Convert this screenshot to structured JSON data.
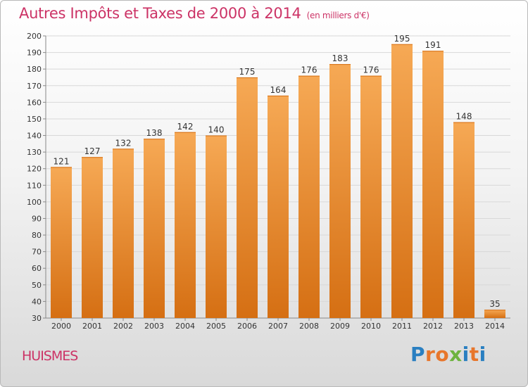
{
  "title": "Autres Impôts et Taxes de 2000 à 2014",
  "unit_note": "(en milliers d'€)",
  "town": "HUISMES",
  "logo": {
    "text": "Proxiti",
    "colors": [
      "#2a7fc1",
      "#e8762b",
      "#e8762b",
      "#6db33f",
      "#2a7fc1",
      "#e8762b",
      "#2a7fc1"
    ]
  },
  "colors": {
    "bar_top": "#f6a955",
    "bar_bottom": "#d56f13",
    "title": "#cc3366",
    "grid": "#d8d8d8"
  },
  "chart_data": {
    "type": "bar",
    "categories": [
      "2000",
      "2001",
      "2002",
      "2003",
      "2004",
      "2005",
      "2006",
      "2007",
      "2008",
      "2009",
      "2010",
      "2011",
      "2012",
      "2013",
      "2014"
    ],
    "values": [
      121,
      127,
      132,
      138,
      142,
      140,
      175,
      164,
      176,
      183,
      176,
      195,
      191,
      148,
      35
    ],
    "ylim": [
      30,
      200
    ],
    "yticks": [
      30,
      40,
      50,
      60,
      70,
      80,
      90,
      100,
      110,
      120,
      130,
      140,
      150,
      160,
      170,
      180,
      190,
      200
    ],
    "grid": true
  }
}
